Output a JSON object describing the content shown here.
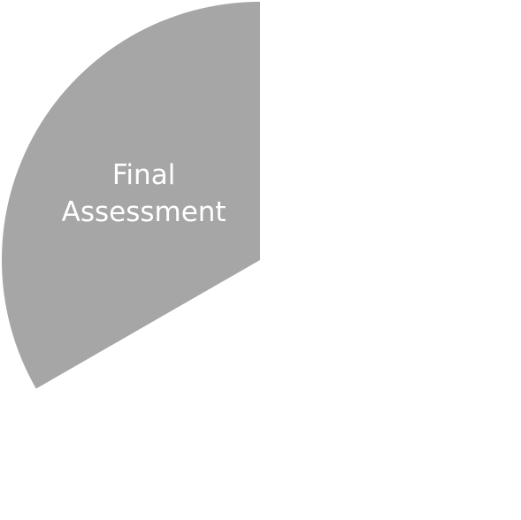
{
  "chart_data": {
    "type": "pie",
    "title": "",
    "legend": "none",
    "start_angle_deg": 0,
    "direction": "counterclockwise",
    "slices": [
      {
        "label_lines": [
          "Final",
          "Assessment"
        ],
        "value": 33.3,
        "unit": "%",
        "color": "#a6a6a6"
      }
    ]
  }
}
